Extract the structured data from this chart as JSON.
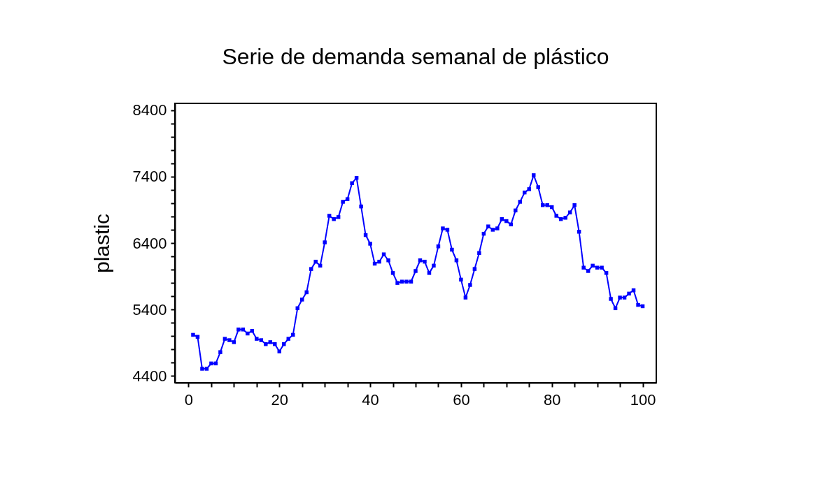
{
  "chart_data": {
    "type": "line",
    "title": "Serie de demanda semanal de plástico",
    "ylabel": "plastic",
    "x": [
      1,
      2,
      3,
      4,
      5,
      6,
      7,
      8,
      9,
      10,
      11,
      12,
      13,
      14,
      15,
      16,
      17,
      18,
      19,
      20,
      21,
      22,
      23,
      24,
      25,
      26,
      27,
      28,
      29,
      30,
      31,
      32,
      33,
      34,
      35,
      36,
      37,
      38,
      39,
      40,
      41,
      42,
      43,
      44,
      45,
      46,
      47,
      48,
      49,
      50,
      51,
      52,
      53,
      54,
      55,
      56,
      57,
      58,
      59,
      60,
      61,
      62,
      63,
      64,
      65,
      66,
      67,
      68,
      69,
      70,
      71,
      72,
      73,
      74,
      75,
      76,
      77,
      78,
      79,
      80,
      81,
      82,
      83,
      84,
      85,
      86,
      87,
      88,
      89,
      90,
      91,
      92,
      93,
      94,
      95,
      96,
      97,
      98,
      99,
      100
    ],
    "series": [
      {
        "color": "#0000ff",
        "values": [
          5020,
          4990,
          4510,
          4510,
          4590,
          4590,
          4760,
          4960,
          4940,
          4910,
          5100,
          5100,
          5040,
          5080,
          4960,
          4940,
          4880,
          4910,
          4880,
          4770,
          4880,
          4960,
          5020,
          5420,
          5550,
          5660,
          6010,
          6120,
          6060,
          6410,
          6810,
          6760,
          6790,
          7020,
          7060,
          7300,
          7380,
          6950,
          6520,
          6390,
          6090,
          6120,
          6230,
          6140,
          5950,
          5800,
          5820,
          5820,
          5820,
          5980,
          6140,
          6120,
          5950,
          6060,
          6350,
          6620,
          6600,
          6300,
          6140,
          5850,
          5580,
          5770,
          6010,
          6250,
          6540,
          6650,
          6600,
          6620,
          6760,
          6730,
          6680,
          6890,
          7020,
          7160,
          7210,
          7420,
          7240,
          6970,
          6970,
          6940,
          6810,
          6760,
          6780,
          6860,
          6970,
          6570,
          6030,
          5980,
          6060,
          6030,
          6030,
          5950,
          5560,
          5420,
          5580,
          5580,
          5640,
          5690,
          5470,
          5450
        ]
      }
    ],
    "xlim": [
      -3,
      103
    ],
    "xticks": [
      0,
      {
        "value": 5,
        "label": null
      },
      {
        "value": 10,
        "label": null
      },
      {
        "value": 15,
        "label": null
      },
      20,
      {
        "value": 25,
        "label": null
      },
      {
        "value": 30,
        "label": null
      },
      {
        "value": 35,
        "label": null
      },
      40,
      {
        "value": 45,
        "label": null
      },
      {
        "value": 50,
        "label": null
      },
      {
        "value": 55,
        "label": null
      },
      60,
      {
        "value": 65,
        "label": null
      },
      {
        "value": 70,
        "label": null
      },
      {
        "value": 75,
        "label": null
      },
      80,
      {
        "value": 85,
        "label": null
      },
      {
        "value": 90,
        "label": null
      },
      {
        "value": 95,
        "label": null
      },
      100
    ],
    "ylim": [
      4300,
      8500
    ],
    "yticks": [
      4400,
      {
        "value": 4600,
        "label": null
      },
      {
        "value": 4800,
        "label": null
      },
      {
        "value": 5000,
        "label": null
      },
      {
        "value": 5200,
        "label": null
      },
      5400,
      {
        "value": 5600,
        "label": null
      },
      {
        "value": 5800,
        "label": null
      },
      {
        "value": 6000,
        "label": null
      },
      {
        "value": 6200,
        "label": null
      },
      6400,
      {
        "value": 6600,
        "label": null
      },
      {
        "value": 6800,
        "label": null
      },
      {
        "value": 7000,
        "label": null
      },
      {
        "value": 7200,
        "label": null
      },
      7400,
      {
        "value": 7600,
        "label": null
      },
      {
        "value": 7800,
        "label": null
      },
      {
        "value": 8000,
        "label": null
      },
      {
        "value": 8200,
        "label": null
      },
      8400
    ],
    "grid": false,
    "marker": "square",
    "line_style": "solid"
  }
}
